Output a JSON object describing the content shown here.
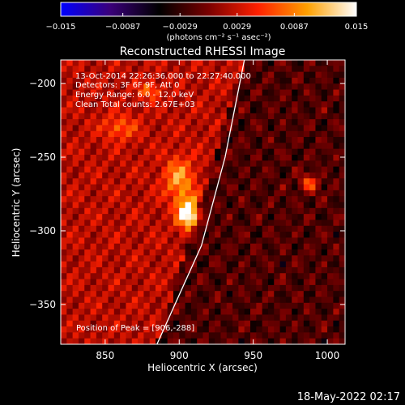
{
  "chart_data": {
    "type": "heatmap",
    "title": "Reconstructed RHESSI Image",
    "xlabel": "Heliocentric X (arcsec)",
    "ylabel": "Heliocentric Y (arcsec)",
    "xlim": [
      820,
      1012
    ],
    "ylim": [
      -377,
      -184
    ],
    "x_ticks": [
      850,
      900,
      950,
      1000
    ],
    "y_ticks": [
      -200,
      -250,
      -300,
      -350
    ],
    "x_tick_labels": [
      "850",
      "900",
      "950",
      "1000"
    ],
    "y_tick_labels": [
      "−200",
      "−250",
      "−300",
      "−350"
    ],
    "colorbar": {
      "range": [
        -0.015,
        0.015
      ],
      "tick_values": [
        -0.015,
        -0.0087,
        -0.0029,
        0.0029,
        0.0087,
        0.015
      ],
      "tick_labels": [
        "−0.015",
        "−0.0087",
        "−0.0029",
        "0.0029",
        "0.0087",
        "0.015"
      ],
      "units": "(photons cm⁻² s⁻¹ asec⁻²)",
      "colors": [
        "#0000ff",
        "#3a007a",
        "#000000",
        "#7a0000",
        "#ff2000",
        "#ffa000",
        "#ffffff"
      ]
    },
    "info_lines": [
      "13-Oct-2014 22:26:36.000 to 22:27:40.000",
      "Detectors: 3F 6F 9F, Att 0",
      "Energy Range: 6.0 - 12.0 keV",
      "Clean     Total counts: 2.67E+03"
    ],
    "peak_label": "Position of Peak = [906,-288]",
    "peak": {
      "x": 906,
      "y": -288
    },
    "limb": [
      {
        "x": 944,
        "y": -184
      },
      {
        "x": 931,
        "y": -250
      },
      {
        "x": 915,
        "y": -310
      },
      {
        "x": 885,
        "y": -377
      }
    ],
    "sources": [
      {
        "x": 906,
        "y": -288,
        "value": 0.015,
        "sx": 5,
        "sy": 7
      },
      {
        "x": 900,
        "y": -265,
        "value": 0.008,
        "sx": 7,
        "sy": 10
      },
      {
        "x": 988,
        "y": -268,
        "value": 0.009,
        "sx": 4,
        "sy": 4
      },
      {
        "x": 880,
        "y": -205,
        "value": 0.006,
        "sx": 5,
        "sy": 4
      },
      {
        "x": 860,
        "y": -230,
        "value": 0.005,
        "sx": 8,
        "sy": 6
      }
    ],
    "background_level": 0.0035,
    "timestamp": "18-May-2022 02:17"
  }
}
